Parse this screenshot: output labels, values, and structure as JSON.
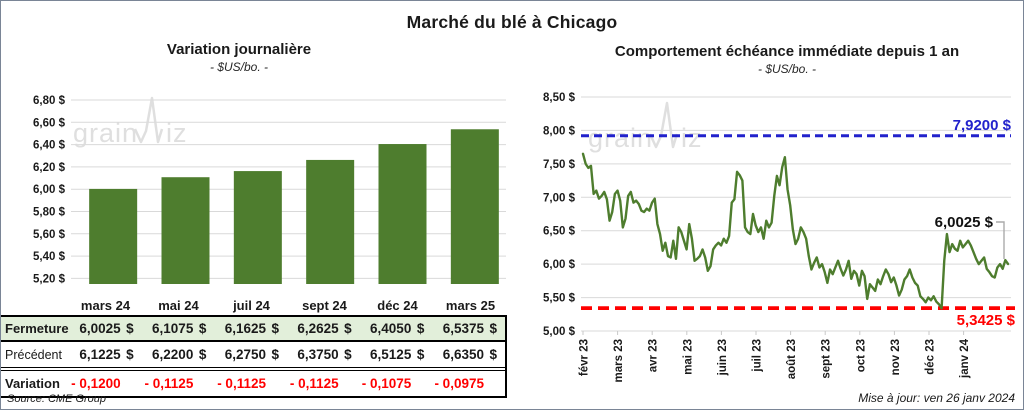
{
  "page": {
    "title": "Marché du blé à Chicago",
    "source": "Source: CME Group",
    "updated": "Mise à jour: ven 26 janv 2024",
    "watermark": "grainwiz"
  },
  "colors": {
    "green": "#4e7d2e",
    "row_highlight": "#e2efda",
    "red": "#ff0000",
    "blue": "#2222cc",
    "grid": "#d9d9d9",
    "watermark": "#dcdcdc",
    "text": "#1a1a1a"
  },
  "chart_data": [
    {
      "type": "bar",
      "title": "Variation journalière",
      "subtitle": "- $US/bo. -",
      "categories": [
        "mars 24",
        "mai 24",
        "juil 24",
        "sept 24",
        "déc 24",
        "mars 25"
      ],
      "values": [
        6.0025,
        6.1075,
        6.1625,
        6.2625,
        6.405,
        6.5375
      ],
      "ytick_values": [
        6.8,
        6.6,
        6.4,
        6.2,
        6.0,
        5.8,
        5.6,
        5.4,
        5.2
      ],
      "ytick_labels": [
        "6,80 $",
        "6,60 $",
        "6,40 $",
        "6,20 $",
        "6,00 $",
        "5,80 $",
        "5,60 $",
        "5,40 $",
        "5,20 $"
      ],
      "ylim": [
        5.15,
        6.8
      ],
      "grid": true,
      "legend": "none"
    },
    {
      "type": "line",
      "title": "Comportement échéance immédiate depuis 1 an",
      "subtitle": "- $US/bo. -",
      "x_tick_labels": [
        "févr 23",
        "mars 23",
        "avr 23",
        "mai 23",
        "juin 23",
        "juil 23",
        "août 23",
        "sept 23",
        "oct 23",
        "nov 23",
        "déc 23",
        "janv 24"
      ],
      "ytick_values": [
        8.5,
        8.0,
        7.5,
        7.0,
        6.5,
        6.0,
        5.5,
        5.0
      ],
      "ytick_labels": [
        "8,50 $",
        "8,00 $",
        "7,50 $",
        "7,00 $",
        "6,50 $",
        "6,00 $",
        "5,50 $",
        "5,00 $"
      ],
      "ylim": [
        5.0,
        8.5
      ],
      "grid": true,
      "legend": "none",
      "series": [
        {
          "name": "échéance immédiate",
          "color": "#4e7d2e",
          "values": [
            7.65,
            7.5,
            7.44,
            7.47,
            7.05,
            7.1,
            6.98,
            7.02,
            7.08,
            6.97,
            6.65,
            6.78,
            7.05,
            7.1,
            6.95,
            6.55,
            6.68,
            7.02,
            7.08,
            6.92,
            6.95,
            6.9,
            6.8,
            6.78,
            6.83,
            6.8,
            6.92,
            6.98,
            6.6,
            6.45,
            6.2,
            6.32,
            6.12,
            6.1,
            6.35,
            6.08,
            6.55,
            6.48,
            6.35,
            6.22,
            6.6,
            6.38,
            6.05,
            6.08,
            6.12,
            6.22,
            6.1,
            5.9,
            5.97,
            6.22,
            6.28,
            6.32,
            6.28,
            6.38,
            6.32,
            6.42,
            6.92,
            6.97,
            7.38,
            7.33,
            7.25,
            6.55,
            6.48,
            6.45,
            6.75,
            6.58,
            6.48,
            6.55,
            6.38,
            6.65,
            6.55,
            6.62,
            7.02,
            7.32,
            7.18,
            7.45,
            7.6,
            7.12,
            6.88,
            6.52,
            6.3,
            6.38,
            6.55,
            6.48,
            6.38,
            6.12,
            5.92,
            6.02,
            6.1,
            5.95,
            6.0,
            5.88,
            5.72,
            5.92,
            5.85,
            5.95,
            6.05,
            5.93,
            5.83,
            5.92,
            6.05,
            5.78,
            5.9,
            5.85,
            5.68,
            5.9,
            5.82,
            5.48,
            5.7,
            5.65,
            5.6,
            5.77,
            5.7,
            5.82,
            5.92,
            5.85,
            5.73,
            5.8,
            5.68,
            5.53,
            5.62,
            5.77,
            5.82,
            5.92,
            5.8,
            5.72,
            5.68,
            5.52,
            5.48,
            5.43,
            5.5,
            5.46,
            5.52,
            5.44,
            5.4,
            5.34,
            6.05,
            6.45,
            6.18,
            6.3,
            6.23,
            6.2,
            6.35,
            6.25,
            6.3,
            6.35,
            6.28,
            6.18,
            6.08,
            6.0,
            6.05,
            6.1,
            5.93,
            5.88,
            5.82,
            5.8,
            5.95,
            6.0,
            5.93,
            6.06,
            6.0025
          ]
        }
      ],
      "reference_lines": [
        {
          "value": 7.92,
          "label": "7,9200 $",
          "color": "#2222cc",
          "style": "dashed",
          "label_position": "above-right"
        },
        {
          "value": 5.3425,
          "label": "5,3425 $",
          "color": "#ff0000",
          "style": "dashed",
          "label_position": "below-right"
        }
      ],
      "last_point": {
        "value": 6.0025,
        "label": "6,0025 $"
      }
    }
  ],
  "table": {
    "columns": [
      "mars 24",
      "mai 24",
      "juil 24",
      "sept 24",
      "déc 24",
      "mars 25"
    ],
    "rows": [
      {
        "label": "Fermeture",
        "bold": true,
        "highlight": true,
        "unit": "$",
        "values": [
          "6,0025",
          "6,1075",
          "6,1625",
          "6,2625",
          "6,4050",
          "6,5375"
        ]
      },
      {
        "label": "Précédent",
        "bold": false,
        "highlight": false,
        "unit": "$",
        "values": [
          "6,1225",
          "6,2200",
          "6,2750",
          "6,3750",
          "6,5125",
          "6,6350"
        ]
      },
      {
        "label": "Variation",
        "bold": true,
        "highlight": false,
        "unit": "",
        "color": "red",
        "values": [
          "- 0,1200",
          "- 0,1125",
          "- 0,1125",
          "- 0,1125",
          "- 0,1075",
          "- 0,0975"
        ]
      }
    ]
  }
}
